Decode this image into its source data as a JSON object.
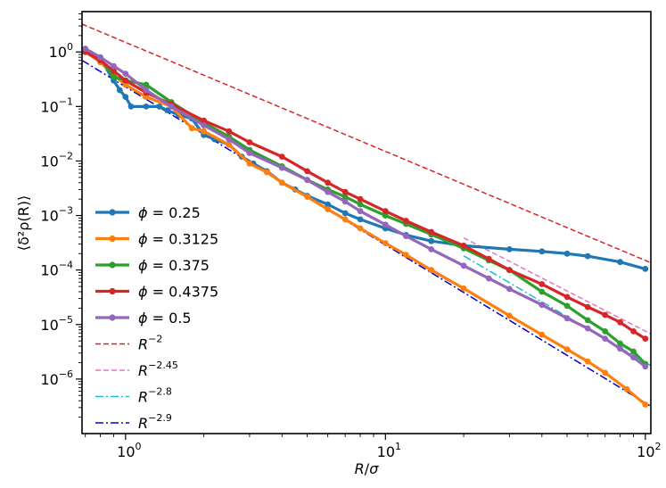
{
  "chart_data": {
    "type": "line",
    "title": "",
    "xscale": "log",
    "yscale": "log",
    "xlim": [
      0.68,
      105
    ],
    "ylim": [
      1e-07,
      5.5
    ],
    "xlabel": {
      "lead": "R",
      "sep": "/",
      "tail": "σ"
    },
    "ylabel": "⟨δ²ρ(R)⟩",
    "x_ticks": [
      {
        "value": 1,
        "base": "10",
        "exp": "0"
      },
      {
        "value": 10,
        "base": "10",
        "exp": "1"
      },
      {
        "value": 100,
        "base": "10",
        "exp": "2"
      }
    ],
    "y_ticks": [
      {
        "value": 1,
        "base": "10",
        "exp": "0"
      },
      {
        "value": 0.1,
        "base": "10",
        "exp": "−1"
      },
      {
        "value": 0.01,
        "base": "10",
        "exp": "−2"
      },
      {
        "value": 0.001,
        "base": "10",
        "exp": "−3"
      },
      {
        "value": 0.0001,
        "base": "10",
        "exp": "−4"
      },
      {
        "value": 1e-05,
        "base": "10",
        "exp": "−5"
      },
      {
        "value": 1e-06,
        "base": "10",
        "exp": "−6"
      }
    ],
    "legend_position": "lower-left",
    "series": [
      {
        "name": "0.25",
        "label_prefix": "ϕ = ",
        "color": "#1f77b4",
        "points": [
          [
            0.7,
            1.05
          ],
          [
            0.8,
            0.75
          ],
          [
            0.9,
            0.3
          ],
          [
            0.95,
            0.2
          ],
          [
            1.0,
            0.15
          ],
          [
            1.05,
            0.1
          ],
          [
            1.2,
            0.1
          ],
          [
            1.35,
            0.1
          ],
          [
            1.45,
            0.085
          ],
          [
            1.6,
            0.07
          ],
          [
            1.8,
            0.06
          ],
          [
            2.0,
            0.03
          ],
          [
            2.2,
            0.025
          ],
          [
            2.5,
            0.02
          ],
          [
            2.8,
            0.012
          ],
          [
            3.1,
            0.009
          ],
          [
            3.5,
            0.0065
          ],
          [
            4.0,
            0.004
          ],
          [
            4.5,
            0.003
          ],
          [
            5.0,
            0.0023
          ],
          [
            6.0,
            0.0016
          ],
          [
            7.0,
            0.0011
          ],
          [
            8.0,
            0.00085
          ],
          [
            10,
            0.00058
          ],
          [
            12,
            0.00044
          ],
          [
            15,
            0.00034
          ],
          [
            20,
            0.00028
          ],
          [
            30,
            0.00024
          ],
          [
            40,
            0.00022
          ],
          [
            50,
            0.0002
          ],
          [
            60,
            0.00018
          ],
          [
            80,
            0.00014
          ],
          [
            100,
            0.000105
          ]
        ]
      },
      {
        "name": "0.3125",
        "label_prefix": "ϕ = ",
        "color": "#ff7f0e",
        "points": [
          [
            0.7,
            1.0
          ],
          [
            0.8,
            0.65
          ],
          [
            0.9,
            0.38
          ],
          [
            1.0,
            0.25
          ],
          [
            1.2,
            0.15
          ],
          [
            1.5,
            0.1
          ],
          [
            1.8,
            0.04
          ],
          [
            2.0,
            0.035
          ],
          [
            2.5,
            0.02
          ],
          [
            3.0,
            0.009
          ],
          [
            3.5,
            0.0062
          ],
          [
            4.0,
            0.004
          ],
          [
            5.0,
            0.0022
          ],
          [
            6.0,
            0.0013
          ],
          [
            7.0,
            0.00085
          ],
          [
            8.0,
            0.00058
          ],
          [
            10,
            0.00031
          ],
          [
            12,
            0.00019
          ],
          [
            15,
            0.0001
          ],
          [
            20,
            4.6e-05
          ],
          [
            30,
            1.45e-05
          ],
          [
            40,
            6.5e-06
          ],
          [
            50,
            3.5e-06
          ],
          [
            60,
            2.1e-06
          ],
          [
            70,
            1.3e-06
          ],
          [
            85,
            6.5e-07
          ],
          [
            100,
            3.4e-07
          ]
        ]
      },
      {
        "name": "0.375",
        "label_prefix": "ϕ = ",
        "color": "#2ca02c",
        "points": [
          [
            0.7,
            1.0
          ],
          [
            0.8,
            0.75
          ],
          [
            0.9,
            0.35
          ],
          [
            1.0,
            0.3
          ],
          [
            1.2,
            0.25
          ],
          [
            1.5,
            0.12
          ],
          [
            2.0,
            0.05
          ],
          [
            2.5,
            0.028
          ],
          [
            3.0,
            0.016
          ],
          [
            4.0,
            0.008
          ],
          [
            5.0,
            0.0045
          ],
          [
            6.0,
            0.003
          ],
          [
            7.0,
            0.0022
          ],
          [
            8.0,
            0.0016
          ],
          [
            10,
            0.001
          ],
          [
            12,
            0.0007
          ],
          [
            15,
            0.00045
          ],
          [
            20,
            0.00025
          ],
          [
            25,
            0.00015
          ],
          [
            30,
            0.0001
          ],
          [
            40,
            4e-05
          ],
          [
            50,
            2.2e-05
          ],
          [
            60,
            1.2e-05
          ],
          [
            70,
            7.5e-06
          ],
          [
            80,
            4.5e-06
          ],
          [
            90,
            3.2e-06
          ],
          [
            100,
            1.9e-06
          ]
        ]
      },
      {
        "name": "0.4375",
        "label_prefix": "ϕ = ",
        "color": "#d62728",
        "points": [
          [
            0.7,
            1.0
          ],
          [
            0.8,
            0.7
          ],
          [
            0.9,
            0.45
          ],
          [
            1.0,
            0.3
          ],
          [
            1.2,
            0.18
          ],
          [
            1.5,
            0.11
          ],
          [
            2.0,
            0.055
          ],
          [
            2.5,
            0.035
          ],
          [
            3.0,
            0.022
          ],
          [
            4.0,
            0.012
          ],
          [
            5.0,
            0.0065
          ],
          [
            6.0,
            0.004
          ],
          [
            7.0,
            0.0027
          ],
          [
            8.0,
            0.002
          ],
          [
            10,
            0.0012
          ],
          [
            12,
            0.0008
          ],
          [
            15,
            0.0005
          ],
          [
            20,
            0.00028
          ],
          [
            25,
            0.00016
          ],
          [
            30,
            0.0001
          ],
          [
            40,
            5.5e-05
          ],
          [
            50,
            3.2e-05
          ],
          [
            60,
            2.1e-05
          ],
          [
            70,
            1.5e-05
          ],
          [
            80,
            1.1e-05
          ],
          [
            90,
            7.5e-06
          ],
          [
            100,
            5.5e-06
          ]
        ]
      },
      {
        "name": "0.5",
        "label_prefix": "ϕ = ",
        "color": "#9467bd",
        "points": [
          [
            0.7,
            1.15
          ],
          [
            0.8,
            0.8
          ],
          [
            0.9,
            0.55
          ],
          [
            1.0,
            0.4
          ],
          [
            1.2,
            0.2
          ],
          [
            1.5,
            0.1
          ],
          [
            2.0,
            0.045
          ],
          [
            2.5,
            0.025
          ],
          [
            3.0,
            0.014
          ],
          [
            4.0,
            0.0075
          ],
          [
            5.0,
            0.0045
          ],
          [
            6.0,
            0.0027
          ],
          [
            7.0,
            0.0018
          ],
          [
            8.0,
            0.0012
          ],
          [
            10,
            0.00068
          ],
          [
            12,
            0.00042
          ],
          [
            15,
            0.00024
          ],
          [
            20,
            0.00012
          ],
          [
            25,
            7e-05
          ],
          [
            30,
            4.5e-05
          ],
          [
            40,
            2.3e-05
          ],
          [
            50,
            1.3e-05
          ],
          [
            60,
            8.5e-06
          ],
          [
            70,
            5.5e-06
          ],
          [
            80,
            3.6e-06
          ],
          [
            90,
            2.5e-06
          ],
          [
            100,
            1.7e-06
          ]
        ]
      }
    ],
    "reference_lines": [
      {
        "base": "R",
        "exp": "−2",
        "coef": 1.5,
        "power": -2,
        "color": "#d62728",
        "dash": "6,3"
      },
      {
        "base": "R",
        "exp": "−2.45",
        "coef": 0.6,
        "power": -2.45,
        "color": "#e377c2",
        "dash": "6,3",
        "x_from": 20
      },
      {
        "base": "R",
        "exp": "−2.8",
        "coef": 0.8,
        "power": -2.8,
        "color": "#17becf",
        "dash": "9,3,2,3",
        "x_from": 20
      },
      {
        "base": "R",
        "exp": "−2.9",
        "coef": 0.23,
        "power": -2.9,
        "color": "#0000cd",
        "dash": "9,3,2,3"
      }
    ]
  }
}
